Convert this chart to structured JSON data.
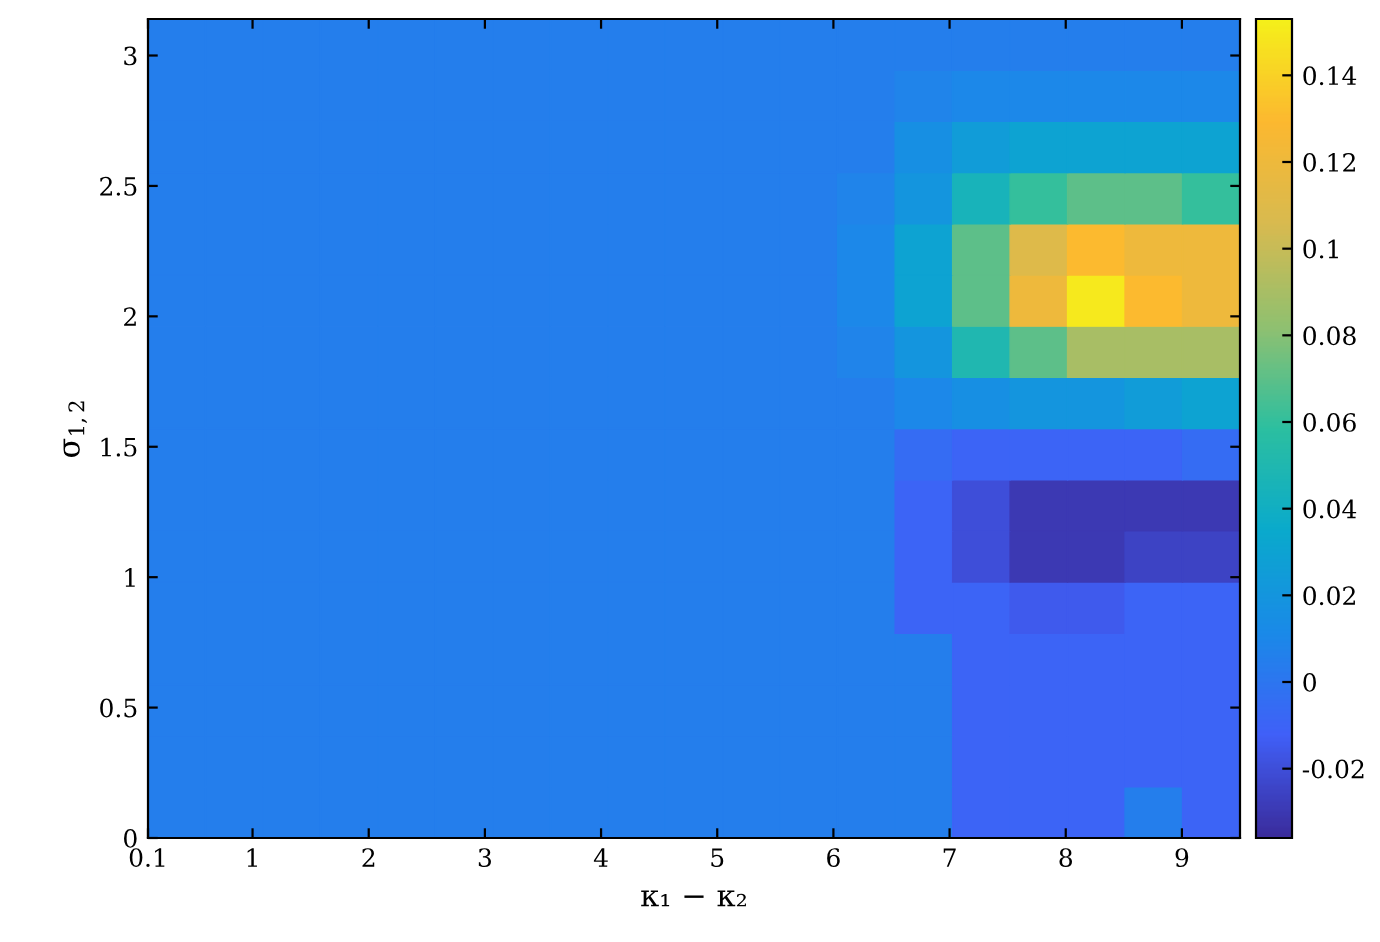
{
  "chart_data": {
    "type": "heatmap",
    "xlabel": "κ₁ − κ₂",
    "ylabel": "σ$_{1,2}$",
    "cells": [
      [
        0.005,
        0.005,
        0.005,
        0.005,
        0.005,
        0.005,
        0.005,
        0.005,
        0.005,
        0.005,
        0.005,
        0.005,
        0.005,
        0.005,
        0.005,
        0.005,
        0.005,
        0.005,
        0.005
      ],
      [
        0.005,
        0.005,
        0.005,
        0.005,
        0.005,
        0.005,
        0.005,
        0.005,
        0.005,
        0.005,
        0.005,
        0.005,
        0.005,
        0.008,
        0.01,
        0.01,
        0.01,
        0.01,
        0.01
      ],
      [
        0.005,
        0.005,
        0.005,
        0.005,
        0.005,
        0.005,
        0.005,
        0.005,
        0.005,
        0.005,
        0.005,
        0.005,
        0.005,
        0.015,
        0.025,
        0.03,
        0.03,
        0.03,
        0.03
      ],
      [
        0.005,
        0.005,
        0.005,
        0.005,
        0.005,
        0.005,
        0.005,
        0.005,
        0.005,
        0.005,
        0.005,
        0.005,
        0.008,
        0.02,
        0.045,
        0.06,
        0.07,
        0.07,
        0.06
      ],
      [
        0.005,
        0.005,
        0.005,
        0.005,
        0.005,
        0.005,
        0.005,
        0.005,
        0.005,
        0.005,
        0.005,
        0.005,
        0.01,
        0.03,
        0.07,
        0.11,
        0.13,
        0.12,
        0.12
      ],
      [
        0.005,
        0.005,
        0.005,
        0.005,
        0.005,
        0.005,
        0.005,
        0.005,
        0.005,
        0.005,
        0.005,
        0.005,
        0.01,
        0.03,
        0.07,
        0.12,
        0.15,
        0.13,
        0.12
      ],
      [
        0.005,
        0.005,
        0.005,
        0.005,
        0.005,
        0.005,
        0.005,
        0.005,
        0.005,
        0.005,
        0.005,
        0.005,
        0.008,
        0.02,
        0.05,
        0.07,
        0.09,
        0.09,
        0.09
      ],
      [
        0.005,
        0.005,
        0.005,
        0.005,
        0.005,
        0.005,
        0.005,
        0.005,
        0.005,
        0.005,
        0.005,
        0.005,
        0.005,
        0.01,
        0.015,
        0.02,
        0.02,
        0.025,
        0.03
      ],
      [
        0.005,
        0.005,
        0.005,
        0.005,
        0.005,
        0.005,
        0.005,
        0.005,
        0.005,
        0.005,
        0.005,
        0.005,
        0.005,
        -0.005,
        -0.01,
        -0.01,
        -0.01,
        -0.01,
        -0.005
      ],
      [
        0.005,
        0.005,
        0.005,
        0.005,
        0.005,
        0.005,
        0.005,
        0.005,
        0.005,
        0.005,
        0.005,
        0.005,
        0.005,
        -0.01,
        -0.02,
        -0.03,
        -0.03,
        -0.03,
        -0.03
      ],
      [
        0.005,
        0.005,
        0.005,
        0.005,
        0.005,
        0.005,
        0.005,
        0.005,
        0.005,
        0.005,
        0.005,
        0.005,
        0.005,
        -0.01,
        -0.02,
        -0.03,
        -0.03,
        -0.025,
        -0.025
      ],
      [
        0.005,
        0.005,
        0.005,
        0.005,
        0.005,
        0.005,
        0.005,
        0.005,
        0.005,
        0.005,
        0.005,
        0.005,
        0.005,
        -0.01,
        -0.01,
        -0.015,
        -0.015,
        -0.01,
        -0.01
      ],
      [
        0.005,
        0.005,
        0.005,
        0.005,
        0.005,
        0.005,
        0.005,
        0.005,
        0.005,
        0.005,
        0.005,
        0.005,
        0.005,
        0.005,
        -0.01,
        -0.01,
        -0.01,
        -0.01,
        -0.01
      ],
      [
        0.005,
        0.005,
        0.005,
        0.005,
        0.005,
        0.005,
        0.005,
        0.005,
        0.005,
        0.005,
        0.005,
        0.005,
        0.005,
        0.005,
        -0.01,
        -0.01,
        -0.01,
        -0.01,
        -0.01
      ],
      [
        0.005,
        0.005,
        0.005,
        0.005,
        0.005,
        0.005,
        0.005,
        0.005,
        0.005,
        0.005,
        0.005,
        0.005,
        0.005,
        0.005,
        -0.01,
        -0.01,
        -0.01,
        -0.01,
        -0.01
      ],
      [
        0.005,
        0.005,
        0.005,
        0.005,
        0.005,
        0.005,
        0.005,
        0.005,
        0.005,
        0.005,
        0.005,
        0.005,
        0.005,
        0.005,
        -0.01,
        -0.01,
        -0.01,
        0.005,
        -0.01
      ]
    ],
    "xlim": [
      0.1,
      9.5
    ],
    "xticks": [
      0.1,
      1,
      2,
      3,
      4,
      5,
      6,
      7,
      8,
      9
    ],
    "ylim": [
      0,
      3.14
    ],
    "yticks": [
      0,
      0.5,
      1,
      1.5,
      2,
      2.5,
      3
    ],
    "clim": [
      -0.036,
      0.153
    ],
    "cticks": [
      -0.02,
      0,
      0.02,
      0.04,
      0.06,
      0.08,
      0.1,
      0.12,
      0.14
    ]
  }
}
